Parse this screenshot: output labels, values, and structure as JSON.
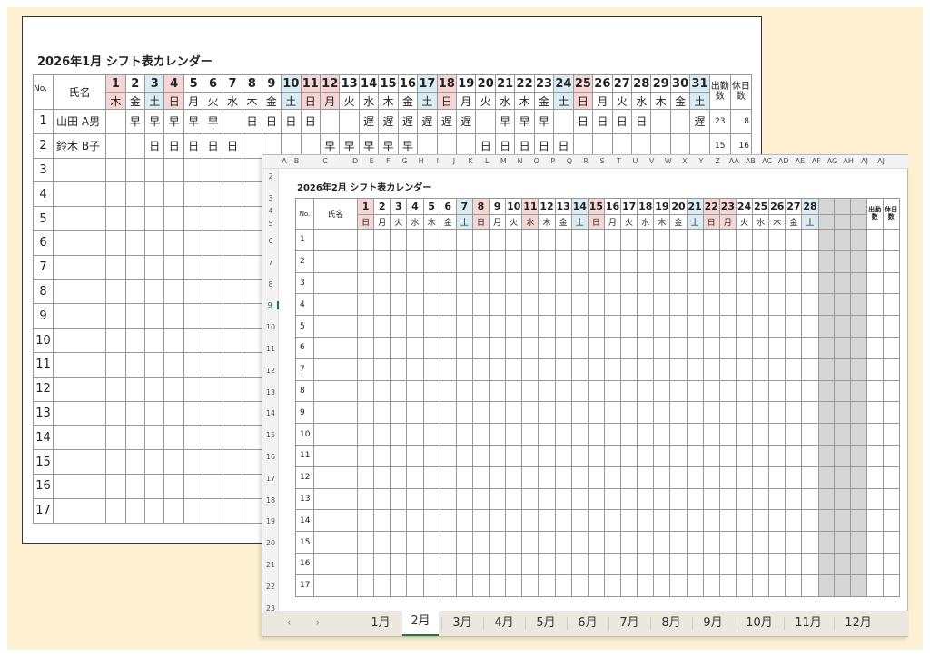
{
  "january": {
    "title": "2026年1月 シフト表カレンダー",
    "headers": {
      "no": "No.",
      "name": "氏名",
      "work_days": "出勤数",
      "off_days": "休日数"
    },
    "days": [
      {
        "d": "1",
        "w": "木",
        "c": "pink"
      },
      {
        "d": "2",
        "w": "金"
      },
      {
        "d": "3",
        "w": "土",
        "c": "blue"
      },
      {
        "d": "4",
        "w": "日",
        "c": "pink"
      },
      {
        "d": "5",
        "w": "月"
      },
      {
        "d": "6",
        "w": "火"
      },
      {
        "d": "7",
        "w": "水"
      },
      {
        "d": "8",
        "w": "木"
      },
      {
        "d": "9",
        "w": "金"
      },
      {
        "d": "10",
        "w": "土",
        "c": "blue"
      },
      {
        "d": "11",
        "w": "日",
        "c": "pink"
      },
      {
        "d": "12",
        "w": "月",
        "c": "pink"
      },
      {
        "d": "13",
        "w": "火"
      },
      {
        "d": "14",
        "w": "水"
      },
      {
        "d": "15",
        "w": "木"
      },
      {
        "d": "16",
        "w": "金"
      },
      {
        "d": "17",
        "w": "土",
        "c": "blue"
      },
      {
        "d": "18",
        "w": "日",
        "c": "pink"
      },
      {
        "d": "19",
        "w": "月"
      },
      {
        "d": "20",
        "w": "火"
      },
      {
        "d": "21",
        "w": "水"
      },
      {
        "d": "22",
        "w": "木"
      },
      {
        "d": "23",
        "w": "金"
      },
      {
        "d": "24",
        "w": "土",
        "c": "blue"
      },
      {
        "d": "25",
        "w": "日",
        "c": "pink"
      },
      {
        "d": "26",
        "w": "月"
      },
      {
        "d": "27",
        "w": "火"
      },
      {
        "d": "28",
        "w": "水"
      },
      {
        "d": "29",
        "w": "木"
      },
      {
        "d": "30",
        "w": "金"
      },
      {
        "d": "31",
        "w": "土",
        "c": "blue"
      }
    ],
    "rows": [
      {
        "no": "1",
        "name": "山田 A男",
        "shifts": [
          "",
          "早",
          "早",
          "早",
          "早",
          "早",
          "",
          "日",
          "日",
          "日",
          "日",
          "",
          "",
          "遅",
          "遅",
          "遅",
          "遅",
          "遅",
          "遅",
          "",
          "早",
          "早",
          "早",
          "",
          "日",
          "日",
          "日",
          "日",
          "",
          "",
          "遅"
        ],
        "work": "23",
        "off": "8"
      },
      {
        "no": "2",
        "name": "鈴木 B子",
        "shifts": [
          "",
          "",
          "日",
          "日",
          "日",
          "日",
          "日",
          "",
          "",
          "",
          "",
          "早",
          "早",
          "早",
          "早",
          "早",
          "",
          "",
          "",
          "日",
          "日",
          "日",
          "日",
          "日",
          "",
          "",
          "",
          "",
          "",
          "",
          ""
        ],
        "work": "15",
        "off": "16"
      },
      {
        "no": "3"
      },
      {
        "no": "4"
      },
      {
        "no": "5"
      },
      {
        "no": "6"
      },
      {
        "no": "7"
      },
      {
        "no": "8"
      },
      {
        "no": "9"
      },
      {
        "no": "10"
      },
      {
        "no": "11"
      },
      {
        "no": "12"
      },
      {
        "no": "13"
      },
      {
        "no": "14"
      },
      {
        "no": "15"
      },
      {
        "no": "16"
      },
      {
        "no": "17"
      }
    ]
  },
  "february": {
    "title": "2026年2月 シフト表カレンダー",
    "headers": {
      "no": "No.",
      "name": "氏名",
      "work_days": "出勤数",
      "off_days": "休日数"
    },
    "column_letters": [
      "A",
      "B",
      "C",
      "D",
      "E",
      "F",
      "G",
      "H",
      "I",
      "J",
      "K",
      "L",
      "M",
      "N",
      "O",
      "P",
      "Q",
      "R",
      "S",
      "T",
      "U",
      "V",
      "W",
      "X",
      "Y",
      "Z",
      "AA",
      "AB",
      "AC",
      "AD",
      "AE",
      "AF",
      "AG",
      "AH",
      "AJ",
      "AJ"
    ],
    "row_numbers": [
      "2",
      "3",
      "4",
      "5",
      "6",
      "7",
      "8",
      "9",
      "10",
      "11",
      "12",
      "13",
      "14",
      "15",
      "16",
      "17",
      "18",
      "19",
      "20",
      "21",
      "22",
      "23"
    ],
    "selected_row": "9",
    "days": [
      {
        "d": "1",
        "w": "日",
        "c": "pink"
      },
      {
        "d": "2",
        "w": "月"
      },
      {
        "d": "3",
        "w": "火"
      },
      {
        "d": "4",
        "w": "水"
      },
      {
        "d": "5",
        "w": "木"
      },
      {
        "d": "6",
        "w": "金"
      },
      {
        "d": "7",
        "w": "土",
        "c": "blue"
      },
      {
        "d": "8",
        "w": "日",
        "c": "pink"
      },
      {
        "d": "9",
        "w": "月"
      },
      {
        "d": "10",
        "w": "火"
      },
      {
        "d": "11",
        "w": "水",
        "c": "pink"
      },
      {
        "d": "12",
        "w": "木"
      },
      {
        "d": "13",
        "w": "金"
      },
      {
        "d": "14",
        "w": "土",
        "c": "blue"
      },
      {
        "d": "15",
        "w": "日",
        "c": "pink"
      },
      {
        "d": "16",
        "w": "月"
      },
      {
        "d": "17",
        "w": "火"
      },
      {
        "d": "18",
        "w": "水"
      },
      {
        "d": "19",
        "w": "木"
      },
      {
        "d": "20",
        "w": "金"
      },
      {
        "d": "21",
        "w": "土",
        "c": "blue"
      },
      {
        "d": "22",
        "w": "日",
        "c": "pink"
      },
      {
        "d": "23",
        "w": "月",
        "c": "pink"
      },
      {
        "d": "24",
        "w": "火"
      },
      {
        "d": "25",
        "w": "水"
      },
      {
        "d": "26",
        "w": "木"
      },
      {
        "d": "27",
        "w": "金"
      },
      {
        "d": "28",
        "w": "土",
        "c": "blue"
      }
    ],
    "rows": [
      "1",
      "2",
      "3",
      "4",
      "5",
      "6",
      "7",
      "8",
      "9",
      "10",
      "11",
      "12",
      "13",
      "14",
      "15",
      "16",
      "17"
    ]
  },
  "tabs": {
    "prev": "‹",
    "next": "›",
    "items": [
      "1月",
      "2月",
      "3月",
      "4月",
      "5月",
      "6月",
      "7月",
      "8月",
      "9月",
      "10月",
      "11月",
      "12月"
    ],
    "active": "2月"
  },
  "colors": {
    "holiday": "#f6d5d5",
    "saturday": "#d8ecf2",
    "background": "#fdf1d2",
    "active_tab_underline": "#1e7b3a"
  }
}
